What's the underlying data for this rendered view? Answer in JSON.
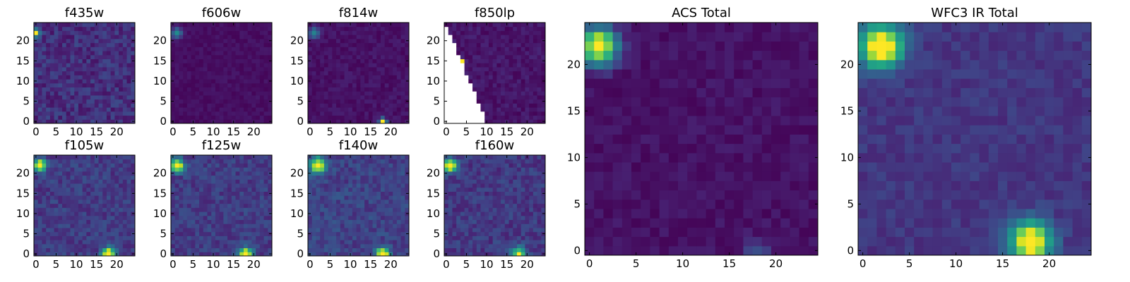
{
  "chart_data": [
    {
      "type": "heatmap",
      "title": "f435w",
      "grid": [
        25,
        25
      ],
      "xticks": [
        "0",
        "5",
        "10",
        "15",
        "20"
      ],
      "yticks": [
        "0",
        "5",
        "10",
        "15",
        "20"
      ],
      "base_level": 0.14,
      "noise": 0.09,
      "sources": [
        {
          "x": 0,
          "y": 22,
          "level": 1.0,
          "sigma": 0.6
        }
      ],
      "missing": null
    },
    {
      "type": "heatmap",
      "title": "f606w",
      "grid": [
        25,
        25
      ],
      "xticks": [
        "0",
        "5",
        "10",
        "15",
        "20"
      ],
      "yticks": [
        "0",
        "5",
        "10",
        "15",
        "20"
      ],
      "base_level": 0.04,
      "noise": 0.03,
      "sources": [
        {
          "x": 1,
          "y": 22,
          "level": 0.45,
          "sigma": 0.9
        }
      ],
      "missing": null
    },
    {
      "type": "heatmap",
      "title": "f814w",
      "grid": [
        25,
        25
      ],
      "xticks": [
        "0",
        "5",
        "10",
        "15",
        "20"
      ],
      "yticks": [
        "0",
        "5",
        "10",
        "15",
        "20"
      ],
      "base_level": 0.05,
      "noise": 0.04,
      "sources": [
        {
          "x": 1,
          "y": 22,
          "level": 0.4,
          "sigma": 1.0
        },
        {
          "x": 18,
          "y": 0,
          "level": 1.0,
          "sigma": 0.6
        }
      ],
      "missing": null
    },
    {
      "type": "heatmap",
      "title": "f850lp",
      "grid": [
        25,
        25
      ],
      "xticks": [
        "0",
        "5",
        "10",
        "15",
        "20"
      ],
      "yticks": [
        "0",
        "5",
        "10",
        "15",
        "20"
      ],
      "base_level": 0.06,
      "noise": 0.05,
      "sources": [
        {
          "x": 4,
          "y": 15,
          "level": 0.95,
          "sigma": 0.4
        }
      ],
      "missing": {
        "shape": "triangle",
        "top_x": 0,
        "top_y": 24,
        "bottom_x": 10,
        "bottom_y": 0
      }
    },
    {
      "type": "heatmap",
      "title": "ACS Total",
      "grid": [
        25,
        25
      ],
      "xticks": [
        "0",
        "5",
        "10",
        "15",
        "20"
      ],
      "yticks": [
        "0",
        "5",
        "10",
        "15",
        "20"
      ],
      "base_level": 0.05,
      "noise": 0.04,
      "sources": [
        {
          "x": 1,
          "y": 22,
          "level": 1.0,
          "sigma": 1.4
        },
        {
          "x": 18,
          "y": 0,
          "level": 0.22,
          "sigma": 0.9
        }
      ],
      "missing": null
    },
    {
      "type": "heatmap",
      "title": "f105w",
      "grid": [
        25,
        25
      ],
      "xticks": [
        "0",
        "5",
        "10",
        "15",
        "20"
      ],
      "yticks": [
        "0",
        "5",
        "10",
        "15",
        "20"
      ],
      "base_level": 0.18,
      "noise": 0.08,
      "sources": [
        {
          "x": 1,
          "y": 22,
          "level": 1.0,
          "sigma": 1.0
        },
        {
          "x": 18,
          "y": 0,
          "level": 1.0,
          "sigma": 1.1
        }
      ],
      "missing": null
    },
    {
      "type": "heatmap",
      "title": "f125w",
      "grid": [
        25,
        25
      ],
      "xticks": [
        "0",
        "5",
        "10",
        "15",
        "20"
      ],
      "yticks": [
        "0",
        "5",
        "10",
        "15",
        "20"
      ],
      "base_level": 0.18,
      "noise": 0.08,
      "sources": [
        {
          "x": 1,
          "y": 22,
          "level": 1.0,
          "sigma": 1.1
        },
        {
          "x": 18,
          "y": 0,
          "level": 1.0,
          "sigma": 1.1
        }
      ],
      "missing": null
    },
    {
      "type": "heatmap",
      "title": "f140w",
      "grid": [
        25,
        25
      ],
      "xticks": [
        "0",
        "5",
        "10",
        "15",
        "20"
      ],
      "yticks": [
        "0",
        "5",
        "10",
        "15",
        "20"
      ],
      "base_level": 0.2,
      "noise": 0.08,
      "sources": [
        {
          "x": 2,
          "y": 22,
          "level": 0.9,
          "sigma": 1.3
        },
        {
          "x": 18,
          "y": 0,
          "level": 1.0,
          "sigma": 1.1
        }
      ],
      "missing": null
    },
    {
      "type": "heatmap",
      "title": "f160w",
      "grid": [
        25,
        25
      ],
      "xticks": [
        "0",
        "5",
        "10",
        "15",
        "20"
      ],
      "yticks": [
        "0",
        "5",
        "10",
        "15",
        "20"
      ],
      "base_level": 0.17,
      "noise": 0.08,
      "sources": [
        {
          "x": 1,
          "y": 22,
          "level": 1.0,
          "sigma": 1.1
        },
        {
          "x": 18,
          "y": 0,
          "level": 0.75,
          "sigma": 1.2
        }
      ],
      "missing": null
    },
    {
      "type": "heatmap",
      "title": "WFC3 IR Total",
      "grid": [
        25,
        25
      ],
      "xticks": [
        "0",
        "5",
        "10",
        "15",
        "20"
      ],
      "yticks": [
        "0",
        "5",
        "10",
        "15",
        "20"
      ],
      "base_level": 0.16,
      "noise": 0.05,
      "sources": [
        {
          "x": 2,
          "y": 22,
          "level": 1.0,
          "sigma": 1.6
        },
        {
          "x": 18,
          "y": 1,
          "level": 1.0,
          "sigma": 1.5
        }
      ],
      "missing": null
    }
  ]
}
